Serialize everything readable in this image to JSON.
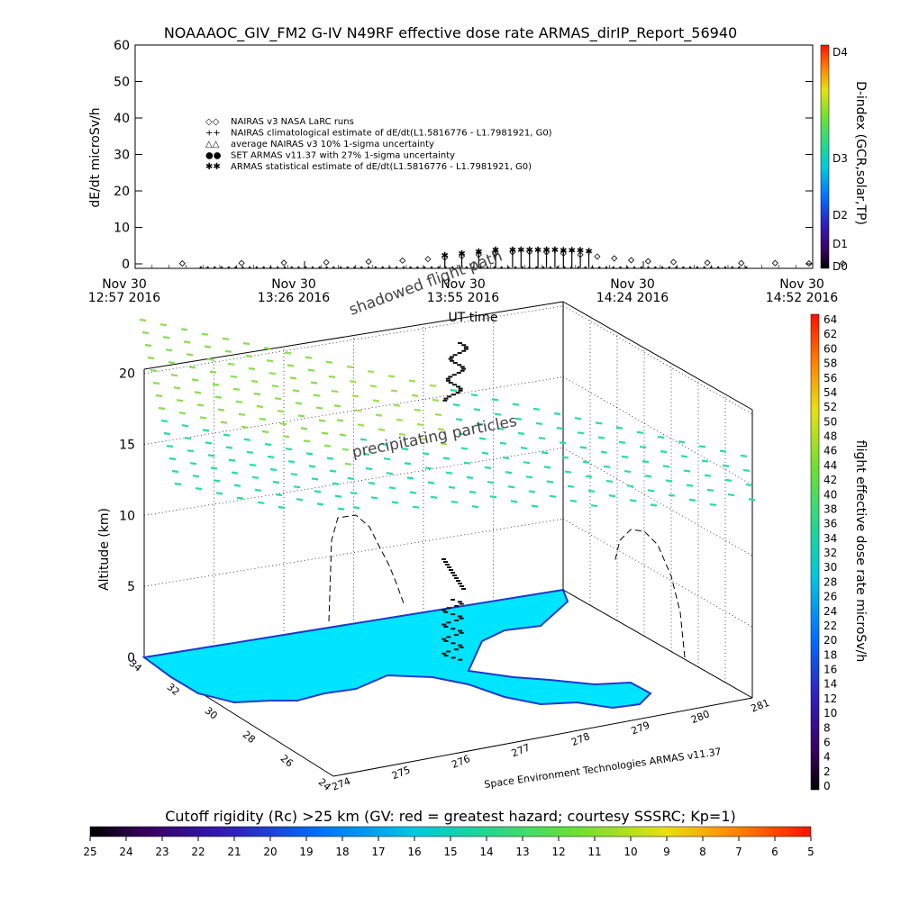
{
  "title": "NOAAAOC_GIV_FM2 G-IV    N49RF   effective dose rate ARMAS_dirIP_Report_56940",
  "chart_data": [
    {
      "type": "scatter",
      "name": "dose-rate-timeseries",
      "ylabel": "dE/dt microSv/h",
      "xlabel": "UT time",
      "ylim": [
        0,
        60
      ],
      "yticks": [
        0,
        10,
        20,
        30,
        40,
        50,
        60
      ],
      "xticks": [
        {
          "l1": "Nov 30",
          "l2": "12:57 2016"
        },
        {
          "l1": "Nov 30",
          "l2": "13:26 2016"
        },
        {
          "l1": "Nov 30",
          "l2": "13:55 2016"
        },
        {
          "l1": "Nov 30",
          "l2": "14:24 2016"
        },
        {
          "l1": "Nov 30",
          "l2": "14:52 2016"
        }
      ],
      "legend": [
        {
          "symbol": "◇◇",
          "label": "NAIRAS v3 NASA LaRC runs",
          "color": "#000000"
        },
        {
          "symbol": "++",
          "label": "NAIRAS climatological estimate of dE/dt(L1.5816776 - L1.7981921, G0)",
          "color": "#000000"
        },
        {
          "symbol": "△△",
          "label": "average NAIRAS v3 10% 1-sigma uncertainty",
          "color": "#000000"
        },
        {
          "symbol": "●●",
          "label": "SET ARMAS v11.37 with 27% 1-sigma uncertainty",
          "color": "#1030c0"
        },
        {
          "symbol": "✱✱",
          "label": "ARMAS statistical estimate of dE/dt(L1.5816776 - L1.7981921, G0)",
          "color": "#000000"
        }
      ],
      "series": [
        {
          "name": "NAIRAS v3 NASA LaRC runs",
          "x_minutes": [
            0,
            14,
            24,
            34,
            44,
            52,
            58,
            62,
            66,
            70,
            74,
            78,
            82,
            86,
            90,
            94,
            98,
            102,
            106,
            110,
            116,
            124,
            132,
            140,
            148,
            156
          ],
          "values": [
            0.1,
            0.2,
            0.3,
            0.4,
            0.6,
            0.9,
            1.3,
            1.7,
            2.1,
            2.5,
            2.9,
            3.2,
            3.3,
            3.2,
            2.9,
            2.5,
            2.0,
            1.5,
            1.0,
            0.7,
            0.5,
            0.3,
            0.2,
            0.2,
            0.1,
            0.1
          ]
        },
        {
          "name": "ARMAS statistical estimate",
          "x_minutes": [
            62,
            66,
            70,
            74,
            78,
            80,
            82,
            84,
            86,
            88,
            90,
            92,
            94,
            96
          ],
          "values": [
            2.5,
            3.0,
            3.5,
            4.0,
            4.0,
            4.0,
            4.0,
            4.0,
            4.0,
            4.0,
            3.8,
            3.8,
            3.8,
            3.6
          ]
        }
      ]
    },
    {
      "type": "scatter",
      "name": "3d-flight-track",
      "zlabel": "Altitude (km)",
      "zticks": [
        0,
        5,
        10,
        15,
        20
      ],
      "lat_ticks": [
        34,
        32,
        30,
        28,
        26,
        24
      ],
      "lon_ticks": [
        274,
        275,
        276,
        277,
        278,
        279,
        280,
        281
      ],
      "annotations": [
        "shadowed flight path",
        "precipitating particles"
      ],
      "credit": "Space Environment Technologies ARMAS v11.37"
    }
  ],
  "colorbars": {
    "dindex": {
      "label": "D-index (GCR,solar,TP)",
      "ticks": [
        "D4",
        "D3",
        "D2",
        "D1",
        "D0"
      ]
    },
    "dose": {
      "label": "flight effective dose rate microSv/h",
      "ticks": [
        64,
        62,
        60,
        58,
        56,
        54,
        52,
        50,
        48,
        46,
        44,
        42,
        40,
        38,
        36,
        34,
        32,
        30,
        28,
        26,
        24,
        22,
        20,
        18,
        16,
        14,
        12,
        10,
        8,
        6,
        4,
        2,
        0
      ]
    },
    "cutoff": {
      "label": "Cutoff rigidity (Rc) >25 km (GV: red = greatest hazard; courtesy SSSRC; Kp=1)",
      "ticks": [
        25,
        24,
        23,
        22,
        21,
        20,
        19,
        18,
        17,
        16,
        15,
        14,
        13,
        12,
        11,
        10,
        9,
        8,
        7,
        6,
        5
      ]
    }
  }
}
